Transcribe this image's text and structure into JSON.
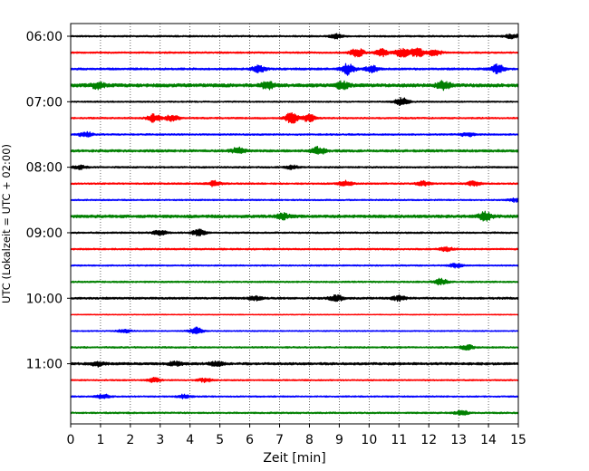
{
  "chart_data": {
    "type": "line",
    "xlabel": "Zeit  [min]",
    "ylabel": "UTC (Lokalzeit = UTC + 02:00)",
    "xlim": [
      0,
      15
    ],
    "x_ticks": [
      0,
      1,
      2,
      3,
      4,
      5,
      6,
      7,
      8,
      9,
      10,
      11,
      12,
      13,
      14,
      15
    ],
    "x_grid": true,
    "x_grid_style": "dotted",
    "y_ticks": [
      "06:00",
      "07:00",
      "08:00",
      "09:00",
      "10:00",
      "11:00"
    ],
    "trace_interval_minutes": 15,
    "trace_colors": [
      "#000000",
      "#ff0000",
      "#0000ff",
      "#008000"
    ],
    "traces": [
      {
        "start": "06:00",
        "color": "#000000",
        "amplitude": 0.12,
        "bursts": [
          {
            "t": 8.9,
            "a": 0.3
          },
          {
            "t": 14.8,
            "a": 0.35
          }
        ]
      },
      {
        "start": "06:15",
        "color": "#ff0000",
        "amplitude": 0.12,
        "bursts": [
          {
            "t": 9.6,
            "a": 0.7
          },
          {
            "t": 10.4,
            "a": 0.6
          },
          {
            "t": 11.1,
            "a": 0.7
          },
          {
            "t": 11.6,
            "a": 0.8
          },
          {
            "t": 12.2,
            "a": 0.5
          }
        ]
      },
      {
        "start": "06:30",
        "color": "#0000ff",
        "amplitude": 0.15,
        "bursts": [
          {
            "t": 6.3,
            "a": 0.5
          },
          {
            "t": 9.3,
            "a": 0.9
          },
          {
            "t": 10.1,
            "a": 0.5
          },
          {
            "t": 14.3,
            "a": 0.7
          }
        ]
      },
      {
        "start": "06:45",
        "color": "#008000",
        "amplitude": 0.25,
        "bursts": [
          {
            "t": 0.9,
            "a": 0.45
          },
          {
            "t": 6.6,
            "a": 0.5
          },
          {
            "t": 9.1,
            "a": 0.5
          },
          {
            "t": 12.5,
            "a": 0.6
          }
        ]
      },
      {
        "start": "07:00",
        "color": "#000000",
        "amplitude": 0.1,
        "bursts": [
          {
            "t": 11.1,
            "a": 0.6
          }
        ]
      },
      {
        "start": "07:15",
        "color": "#ff0000",
        "amplitude": 0.12,
        "bursts": [
          {
            "t": 2.8,
            "a": 0.6
          },
          {
            "t": 3.4,
            "a": 0.5
          },
          {
            "t": 7.4,
            "a": 0.8
          },
          {
            "t": 8.0,
            "a": 0.6
          }
        ]
      },
      {
        "start": "07:30",
        "color": "#0000ff",
        "amplitude": 0.12,
        "bursts": [
          {
            "t": 0.5,
            "a": 0.4
          },
          {
            "t": 13.3,
            "a": 0.3
          }
        ]
      },
      {
        "start": "07:45",
        "color": "#008000",
        "amplitude": 0.18,
        "bursts": [
          {
            "t": 5.6,
            "a": 0.5
          },
          {
            "t": 8.3,
            "a": 0.6
          }
        ]
      },
      {
        "start": "08:00",
        "color": "#000000",
        "amplitude": 0.12,
        "bursts": [
          {
            "t": 0.3,
            "a": 0.3
          },
          {
            "t": 7.4,
            "a": 0.3
          }
        ]
      },
      {
        "start": "08:15",
        "color": "#ff0000",
        "amplitude": 0.12,
        "bursts": [
          {
            "t": 4.8,
            "a": 0.4
          },
          {
            "t": 9.2,
            "a": 0.4
          },
          {
            "t": 11.8,
            "a": 0.35
          },
          {
            "t": 13.5,
            "a": 0.35
          }
        ]
      },
      {
        "start": "08:30",
        "color": "#0000ff",
        "amplitude": 0.1,
        "bursts": [
          {
            "t": 14.9,
            "a": 0.3
          }
        ]
      },
      {
        "start": "08:45",
        "color": "#008000",
        "amplitude": 0.22,
        "bursts": [
          {
            "t": 7.1,
            "a": 0.4
          },
          {
            "t": 13.9,
            "a": 0.6
          }
        ]
      },
      {
        "start": "09:00",
        "color": "#000000",
        "amplitude": 0.12,
        "bursts": [
          {
            "t": 3.0,
            "a": 0.4
          },
          {
            "t": 4.3,
            "a": 0.5
          }
        ]
      },
      {
        "start": "09:15",
        "color": "#ff0000",
        "amplitude": 0.12,
        "bursts": [
          {
            "t": 12.6,
            "a": 0.3
          }
        ]
      },
      {
        "start": "09:30",
        "color": "#0000ff",
        "amplitude": 0.1,
        "bursts": [
          {
            "t": 12.9,
            "a": 0.3
          }
        ]
      },
      {
        "start": "09:45",
        "color": "#008000",
        "amplitude": 0.12,
        "bursts": [
          {
            "t": 12.4,
            "a": 0.45
          }
        ]
      },
      {
        "start": "10:00",
        "color": "#000000",
        "amplitude": 0.15,
        "bursts": [
          {
            "t": 6.2,
            "a": 0.3
          },
          {
            "t": 8.9,
            "a": 0.45
          },
          {
            "t": 11.0,
            "a": 0.35
          }
        ]
      },
      {
        "start": "10:15",
        "color": "#ff0000",
        "amplitude": 0.06,
        "bursts": []
      },
      {
        "start": "10:30",
        "color": "#0000ff",
        "amplitude": 0.08,
        "bursts": [
          {
            "t": 1.8,
            "a": 0.3
          },
          {
            "t": 4.2,
            "a": 0.55
          }
        ]
      },
      {
        "start": "10:45",
        "color": "#008000",
        "amplitude": 0.12,
        "bursts": [
          {
            "t": 13.3,
            "a": 0.35
          }
        ]
      },
      {
        "start": "11:00",
        "color": "#000000",
        "amplitude": 0.18,
        "bursts": [
          {
            "t": 0.9,
            "a": 0.35
          },
          {
            "t": 3.5,
            "a": 0.3
          },
          {
            "t": 4.9,
            "a": 0.35
          }
        ]
      },
      {
        "start": "11:15",
        "color": "#ff0000",
        "amplitude": 0.1,
        "bursts": [
          {
            "t": 2.8,
            "a": 0.35
          },
          {
            "t": 4.5,
            "a": 0.3
          }
        ]
      },
      {
        "start": "11:30",
        "color": "#0000ff",
        "amplitude": 0.1,
        "bursts": [
          {
            "t": 1.1,
            "a": 0.35
          },
          {
            "t": 3.8,
            "a": 0.3
          }
        ]
      },
      {
        "start": "11:45",
        "color": "#008000",
        "amplitude": 0.12,
        "bursts": [
          {
            "t": 13.1,
            "a": 0.35
          }
        ]
      }
    ]
  }
}
